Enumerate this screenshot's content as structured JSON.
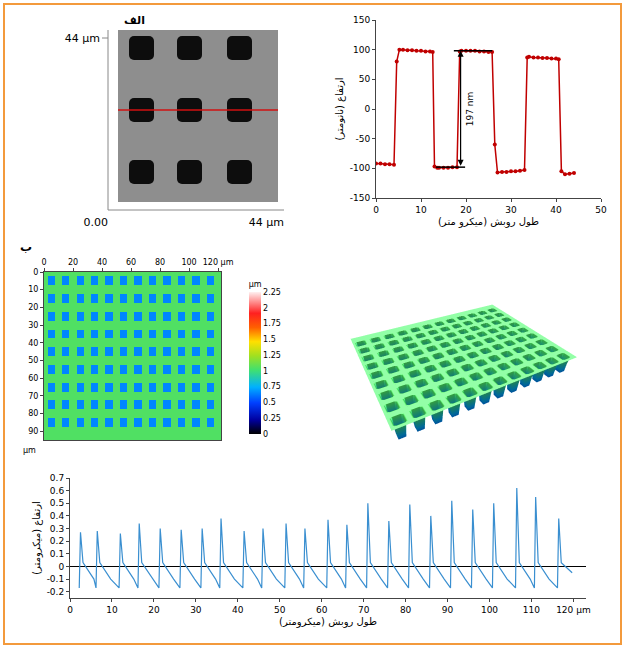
{
  "chart_data": [
    {
      "type": "image",
      "panel_label": "الف",
      "labels": {
        "y_top": "44 µm",
        "origin": "0.00",
        "x_right": "44 µm"
      }
    },
    {
      "type": "line",
      "x_label": "طول روبش (میکرو متر)",
      "y_label": "ارتفاع (نانومتر)",
      "x": [
        0,
        1,
        2,
        3,
        4,
        4.6,
        5.2,
        6,
        7,
        8,
        9,
        10,
        11,
        12,
        12.6,
        13,
        13.6,
        14,
        15,
        16,
        17,
        18,
        18.6,
        19,
        20,
        21,
        22,
        23,
        24,
        25,
        25.8,
        26.4,
        27,
        28,
        29,
        30,
        31,
        32,
        33,
        33.6,
        34,
        35,
        36,
        37,
        38,
        39,
        40,
        40.6,
        41.2,
        42,
        43,
        44
      ],
      "values": [
        -92,
        -92,
        -93,
        -93,
        -94,
        80,
        100,
        100,
        99,
        99,
        98,
        98,
        97,
        97,
        96,
        -97,
        -99,
        -99,
        -99,
        -99,
        -98,
        -98,
        97,
        98,
        98,
        98,
        98,
        97,
        97,
        96,
        96,
        -60,
        -107,
        -106,
        -106,
        -105,
        -105,
        -104,
        -103,
        87,
        88,
        87,
        87,
        86,
        86,
        85,
        85,
        84,
        -105,
        -110,
        -109,
        -108
      ],
      "color": "#c00000",
      "marker": "circle",
      "xlim": [
        0,
        50
      ],
      "xticks": [
        0,
        10,
        20,
        30,
        40,
        50
      ],
      "ylim": [
        -150,
        150
      ],
      "yticks": [
        -150,
        -100,
        -50,
        0,
        50,
        100,
        150
      ],
      "grid": false,
      "annotations": [
        {
          "text": "197 nm",
          "x": 18.8,
          "y": [
            -98,
            98
          ]
        }
      ]
    },
    {
      "type": "heatmap",
      "panel_label": "ب",
      "xlim": [
        0,
        122
      ],
      "xticks": [
        0,
        20,
        40,
        60,
        80,
        100,
        {
          "value": 120,
          "label": "120 µm"
        }
      ],
      "ylim": [
        95,
        0
      ],
      "yticks": [
        0,
        10,
        20,
        30,
        40,
        50,
        60,
        70,
        80,
        90
      ],
      "y_unit": "µm",
      "base_height": 1.05,
      "pit_height": 0.65,
      "pit_width": 4,
      "pit_x": [
        5,
        15,
        25,
        35,
        45,
        55,
        65,
        75,
        85,
        95,
        105,
        115
      ],
      "pit_y": [
        5,
        15,
        25,
        35,
        45,
        55,
        65,
        75,
        85
      ],
      "zlim": [
        0,
        2.25
      ],
      "zticks": [
        0,
        0.25,
        0.5,
        0.75,
        1,
        1.25,
        1.5,
        1.75,
        2,
        2.25
      ],
      "z_unit": "µm"
    },
    {
      "type": "line",
      "x_label": "طول روبش (میکرومتر)",
      "y_label": "ارتفاع (میکرومتر)",
      "x": [
        2.2,
        2.5,
        3.1,
        5.7,
        6.2,
        6.5,
        7.1,
        9.7,
        11.7,
        12,
        12.6,
        15.2,
        16.2,
        16.5,
        17.1,
        19.7,
        21.2,
        21.5,
        22.1,
        24.7,
        26.2,
        26.5,
        27.1,
        29.7,
        31.2,
        31.5,
        32.1,
        34.7,
        35.7,
        36,
        36.6,
        39.2,
        41.2,
        41.5,
        42.1,
        44.7,
        45.7,
        46,
        46.6,
        49.2,
        51.2,
        51.5,
        52.1,
        54.7,
        55.7,
        56,
        56.6,
        59.2,
        61.2,
        61.5,
        62.1,
        64.7,
        65.7,
        66,
        66.6,
        69.2,
        70.7,
        71,
        71.6,
        74.2,
        75.7,
        76,
        76.6,
        79.2,
        80.7,
        81,
        81.6,
        84.2,
        85.7,
        86,
        86.6,
        89.2,
        90.7,
        91,
        91.6,
        94.2,
        95.7,
        96,
        96.6,
        99.2,
        100.7,
        101,
        101.6,
        104.2,
        106.2,
        106.5,
        107.1,
        109.7,
        110.7,
        111,
        111.6,
        114.2,
        116.2,
        116.5,
        117.1,
        119.7
      ],
      "values": [
        -0.17,
        0.27,
        0.03,
        -0.1,
        -0.17,
        0.28,
        0.03,
        -0.1,
        -0.17,
        0.26,
        0.03,
        -0.1,
        -0.17,
        0.34,
        0.03,
        -0.1,
        -0.17,
        0.3,
        0.03,
        -0.1,
        -0.17,
        0.29,
        0.03,
        -0.1,
        -0.17,
        0.3,
        0.03,
        -0.1,
        -0.17,
        0.38,
        0.03,
        -0.1,
        -0.17,
        0.28,
        0.03,
        -0.1,
        -0.17,
        0.3,
        0.03,
        -0.1,
        -0.17,
        0.34,
        0.03,
        -0.1,
        -0.17,
        0.3,
        0.03,
        -0.1,
        -0.17,
        0.37,
        0.03,
        -0.1,
        -0.17,
        0.33,
        0.03,
        -0.1,
        -0.17,
        0.5,
        0.03,
        -0.1,
        -0.17,
        0.36,
        0.03,
        -0.1,
        -0.17,
        0.49,
        0.03,
        -0.1,
        -0.17,
        0.4,
        0.03,
        -0.1,
        -0.17,
        0.52,
        0.03,
        -0.1,
        -0.17,
        0.45,
        0.03,
        -0.1,
        -0.17,
        0.5,
        0.03,
        -0.1,
        -0.17,
        0.62,
        0.03,
        -0.1,
        -0.17,
        0.55,
        0.03,
        -0.1,
        -0.17,
        0.38,
        0.03,
        -0.05
      ],
      "color": "#3a8fd0",
      "xlim": [
        0,
        123
      ],
      "xticks": [
        0,
        10,
        20,
        30,
        40,
        50,
        60,
        70,
        80,
        90,
        100,
        110,
        {
          "value": 120,
          "label": "120 µm"
        }
      ],
      "ylim": [
        -0.25,
        0.7
      ],
      "yticks": [
        -0.2,
        -0.1,
        0,
        0.1,
        0.2,
        0.3,
        0.4,
        0.5,
        0.6,
        0.7
      ],
      "grid": false
    }
  ]
}
